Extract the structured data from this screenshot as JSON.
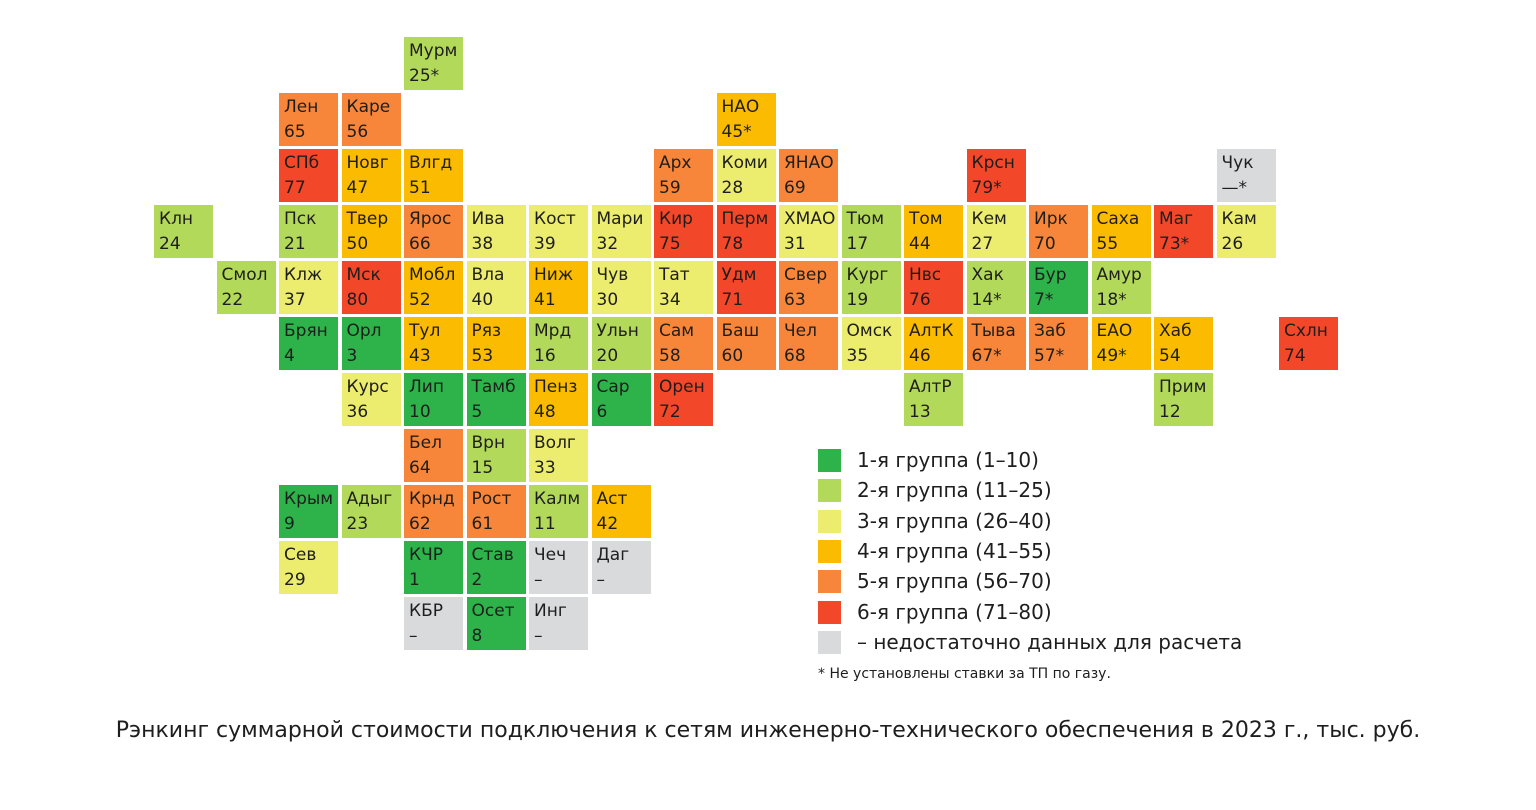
{
  "colors": {
    "g1": "#2db34a",
    "g2": "#b3d95a",
    "g3": "#ecec6f",
    "g4": "#fbbb00",
    "g5": "#f7863a",
    "g6": "#f3472a",
    "na": "#d9dadb"
  },
  "regions": [
    {
      "code": "Мурм",
      "value": "25*",
      "group": "g2",
      "col": 4,
      "row": 0
    },
    {
      "code": "Лен",
      "value": "65",
      "group": "g5",
      "col": 2,
      "row": 1
    },
    {
      "code": "Каре",
      "value": "56",
      "group": "g5",
      "col": 3,
      "row": 1
    },
    {
      "code": "НАО",
      "value": "45*",
      "group": "g4",
      "col": 9,
      "row": 1
    },
    {
      "code": "СПб",
      "value": "77",
      "group": "g6",
      "col": 2,
      "row": 2
    },
    {
      "code": "Новг",
      "value": "47",
      "group": "g4",
      "col": 3,
      "row": 2
    },
    {
      "code": "Влгд",
      "value": "51",
      "group": "g4",
      "col": 4,
      "row": 2
    },
    {
      "code": "Арх",
      "value": "59",
      "group": "g5",
      "col": 8,
      "row": 2
    },
    {
      "code": "Коми",
      "value": "28",
      "group": "g3",
      "col": 9,
      "row": 2
    },
    {
      "code": "ЯНАО",
      "value": "69",
      "group": "g5",
      "col": 10,
      "row": 2
    },
    {
      "code": "Крсн",
      "value": "79*",
      "group": "g6",
      "col": 13,
      "row": 2
    },
    {
      "code": "Чук",
      "value": "—*",
      "group": "na",
      "col": 17,
      "row": 2
    },
    {
      "code": "Клн",
      "value": "24",
      "group": "g2",
      "col": 0,
      "row": 3
    },
    {
      "code": "Пск",
      "value": "21",
      "group": "g2",
      "col": 2,
      "row": 3
    },
    {
      "code": "Твер",
      "value": "50",
      "group": "g4",
      "col": 3,
      "row": 3
    },
    {
      "code": "Ярос",
      "value": "66",
      "group": "g5",
      "col": 4,
      "row": 3
    },
    {
      "code": "Ива",
      "value": "38",
      "group": "g3",
      "col": 5,
      "row": 3
    },
    {
      "code": "Кост",
      "value": "39",
      "group": "g3",
      "col": 6,
      "row": 3
    },
    {
      "code": "Мари",
      "value": "32",
      "group": "g3",
      "col": 7,
      "row": 3
    },
    {
      "code": "Кир",
      "value": "75",
      "group": "g6",
      "col": 8,
      "row": 3
    },
    {
      "code": "Перм",
      "value": "78",
      "group": "g6",
      "col": 9,
      "row": 3
    },
    {
      "code": "ХМАО",
      "value": "31",
      "group": "g3",
      "col": 10,
      "row": 3
    },
    {
      "code": "Тюм",
      "value": "17",
      "group": "g2",
      "col": 11,
      "row": 3
    },
    {
      "code": "Том",
      "value": "44",
      "group": "g4",
      "col": 12,
      "row": 3
    },
    {
      "code": "Кем",
      "value": "27",
      "group": "g3",
      "col": 13,
      "row": 3
    },
    {
      "code": "Ирк",
      "value": "70",
      "group": "g5",
      "col": 14,
      "row": 3
    },
    {
      "code": "Саха",
      "value": "55",
      "group": "g4",
      "col": 15,
      "row": 3
    },
    {
      "code": "Маг",
      "value": "73*",
      "group": "g6",
      "col": 16,
      "row": 3
    },
    {
      "code": "Кам",
      "value": "26",
      "group": "g3",
      "col": 17,
      "row": 3
    },
    {
      "code": "Смол",
      "value": "22",
      "group": "g2",
      "col": 1,
      "row": 4
    },
    {
      "code": "Клж",
      "value": "37",
      "group": "g3",
      "col": 2,
      "row": 4
    },
    {
      "code": "Мск",
      "value": "80",
      "group": "g6",
      "col": 3,
      "row": 4
    },
    {
      "code": "Мобл",
      "value": "52",
      "group": "g4",
      "col": 4,
      "row": 4
    },
    {
      "code": "Вла",
      "value": "40",
      "group": "g3",
      "col": 5,
      "row": 4
    },
    {
      "code": "Ниж",
      "value": "41",
      "group": "g4",
      "col": 6,
      "row": 4
    },
    {
      "code": "Чув",
      "value": "30",
      "group": "g3",
      "col": 7,
      "row": 4
    },
    {
      "code": "Тат",
      "value": "34",
      "group": "g3",
      "col": 8,
      "row": 4
    },
    {
      "code": "Удм",
      "value": "71",
      "group": "g6",
      "col": 9,
      "row": 4
    },
    {
      "code": "Свер",
      "value": "63",
      "group": "g5",
      "col": 10,
      "row": 4
    },
    {
      "code": "Кург",
      "value": "19",
      "group": "g2",
      "col": 11,
      "row": 4
    },
    {
      "code": "Нвс",
      "value": "76",
      "group": "g6",
      "col": 12,
      "row": 4
    },
    {
      "code": "Хак",
      "value": "14*",
      "group": "g2",
      "col": 13,
      "row": 4
    },
    {
      "code": "Бур",
      "value": "7*",
      "group": "g1",
      "col": 14,
      "row": 4
    },
    {
      "code": "Амур",
      "value": "18*",
      "group": "g2",
      "col": 15,
      "row": 4
    },
    {
      "code": "Брян",
      "value": "4",
      "group": "g1",
      "col": 2,
      "row": 5
    },
    {
      "code": "Орл",
      "value": "3",
      "group": "g1",
      "col": 3,
      "row": 5
    },
    {
      "code": "Тул",
      "value": "43",
      "group": "g4",
      "col": 4,
      "row": 5
    },
    {
      "code": "Ряз",
      "value": "53",
      "group": "g4",
      "col": 5,
      "row": 5
    },
    {
      "code": "Мрд",
      "value": "16",
      "group": "g2",
      "col": 6,
      "row": 5
    },
    {
      "code": "Ульн",
      "value": "20",
      "group": "g2",
      "col": 7,
      "row": 5
    },
    {
      "code": "Сам",
      "value": "58",
      "group": "g5",
      "col": 8,
      "row": 5
    },
    {
      "code": "Баш",
      "value": "60",
      "group": "g5",
      "col": 9,
      "row": 5
    },
    {
      "code": "Чел",
      "value": "68",
      "group": "g5",
      "col": 10,
      "row": 5
    },
    {
      "code": "Омск",
      "value": "35",
      "group": "g3",
      "col": 11,
      "row": 5
    },
    {
      "code": "АлтК",
      "value": "46",
      "group": "g4",
      "col": 12,
      "row": 5
    },
    {
      "code": "Тыва",
      "value": "67*",
      "group": "g5",
      "col": 13,
      "row": 5
    },
    {
      "code": "Заб",
      "value": "57*",
      "group": "g5",
      "col": 14,
      "row": 5
    },
    {
      "code": "ЕАО",
      "value": "49*",
      "group": "g4",
      "col": 15,
      "row": 5
    },
    {
      "code": "Хаб",
      "value": "54",
      "group": "g4",
      "col": 16,
      "row": 5
    },
    {
      "code": "Схлн",
      "value": "74",
      "group": "g6",
      "col": 18,
      "row": 5
    },
    {
      "code": "Курс",
      "value": "36",
      "group": "g3",
      "col": 3,
      "row": 6
    },
    {
      "code": "Лип",
      "value": "10",
      "group": "g1",
      "col": 4,
      "row": 6
    },
    {
      "code": "Тамб",
      "value": "5",
      "group": "g1",
      "col": 5,
      "row": 6
    },
    {
      "code": "Пенз",
      "value": "48",
      "group": "g4",
      "col": 6,
      "row": 6
    },
    {
      "code": "Сар",
      "value": "6",
      "group": "g1",
      "col": 7,
      "row": 6
    },
    {
      "code": "Орен",
      "value": "72",
      "group": "g6",
      "col": 8,
      "row": 6
    },
    {
      "code": "АлтР",
      "value": "13",
      "group": "g2",
      "col": 12,
      "row": 6
    },
    {
      "code": "Прим",
      "value": "12",
      "group": "g2",
      "col": 16,
      "row": 6
    },
    {
      "code": "Бел",
      "value": "64",
      "group": "g5",
      "col": 4,
      "row": 7
    },
    {
      "code": "Врн",
      "value": "15",
      "group": "g2",
      "col": 5,
      "row": 7
    },
    {
      "code": "Волг",
      "value": "33",
      "group": "g3",
      "col": 6,
      "row": 7
    },
    {
      "code": "Крым",
      "value": "9",
      "group": "g1",
      "col": 2,
      "row": 8
    },
    {
      "code": "Адыг",
      "value": "23",
      "group": "g2",
      "col": 3,
      "row": 8
    },
    {
      "code": "Крнд",
      "value": "62",
      "group": "g5",
      "col": 4,
      "row": 8
    },
    {
      "code": "Рост",
      "value": "61",
      "group": "g5",
      "col": 5,
      "row": 8
    },
    {
      "code": "Калм",
      "value": "11",
      "group": "g2",
      "col": 6,
      "row": 8
    },
    {
      "code": "Аст",
      "value": "42",
      "group": "g4",
      "col": 7,
      "row": 8
    },
    {
      "code": "Сев",
      "value": "29",
      "group": "g3",
      "col": 2,
      "row": 9
    },
    {
      "code": "КЧР",
      "value": "1",
      "group": "g1",
      "col": 4,
      "row": 9
    },
    {
      "code": "Став",
      "value": "2",
      "group": "g1",
      "col": 5,
      "row": 9
    },
    {
      "code": "Чеч",
      "value": "–",
      "group": "na",
      "col": 6,
      "row": 9
    },
    {
      "code": "Даг",
      "value": "–",
      "group": "na",
      "col": 7,
      "row": 9
    },
    {
      "code": "КБР",
      "value": "–",
      "group": "na",
      "col": 4,
      "row": 10
    },
    {
      "code": "Осет",
      "value": "8",
      "group": "g1",
      "col": 5,
      "row": 10
    },
    {
      "code": "Инг",
      "value": "–",
      "group": "na",
      "col": 6,
      "row": 10
    }
  ],
  "legend": [
    {
      "group": "g1",
      "label": "1-я группа (1–10)"
    },
    {
      "group": "g2",
      "label": "2-я группа (11–25)"
    },
    {
      "group": "g3",
      "label": "3-я группа (26–40)"
    },
    {
      "group": "g4",
      "label": "4-я группа (41–55)"
    },
    {
      "group": "g5",
      "label": "5-я группа (56–70)"
    },
    {
      "group": "g6",
      "label": "6-я группа (71–80)"
    },
    {
      "group": "na",
      "label": "– недостаточно данных для расчета"
    }
  ],
  "footnote": "* Не установлены ставки за ТП по газу.",
  "caption": "Рэнкинг суммарной стоимости подключения к сетям инженерно-технического обеспечения в 2023 г., тыс. руб."
}
